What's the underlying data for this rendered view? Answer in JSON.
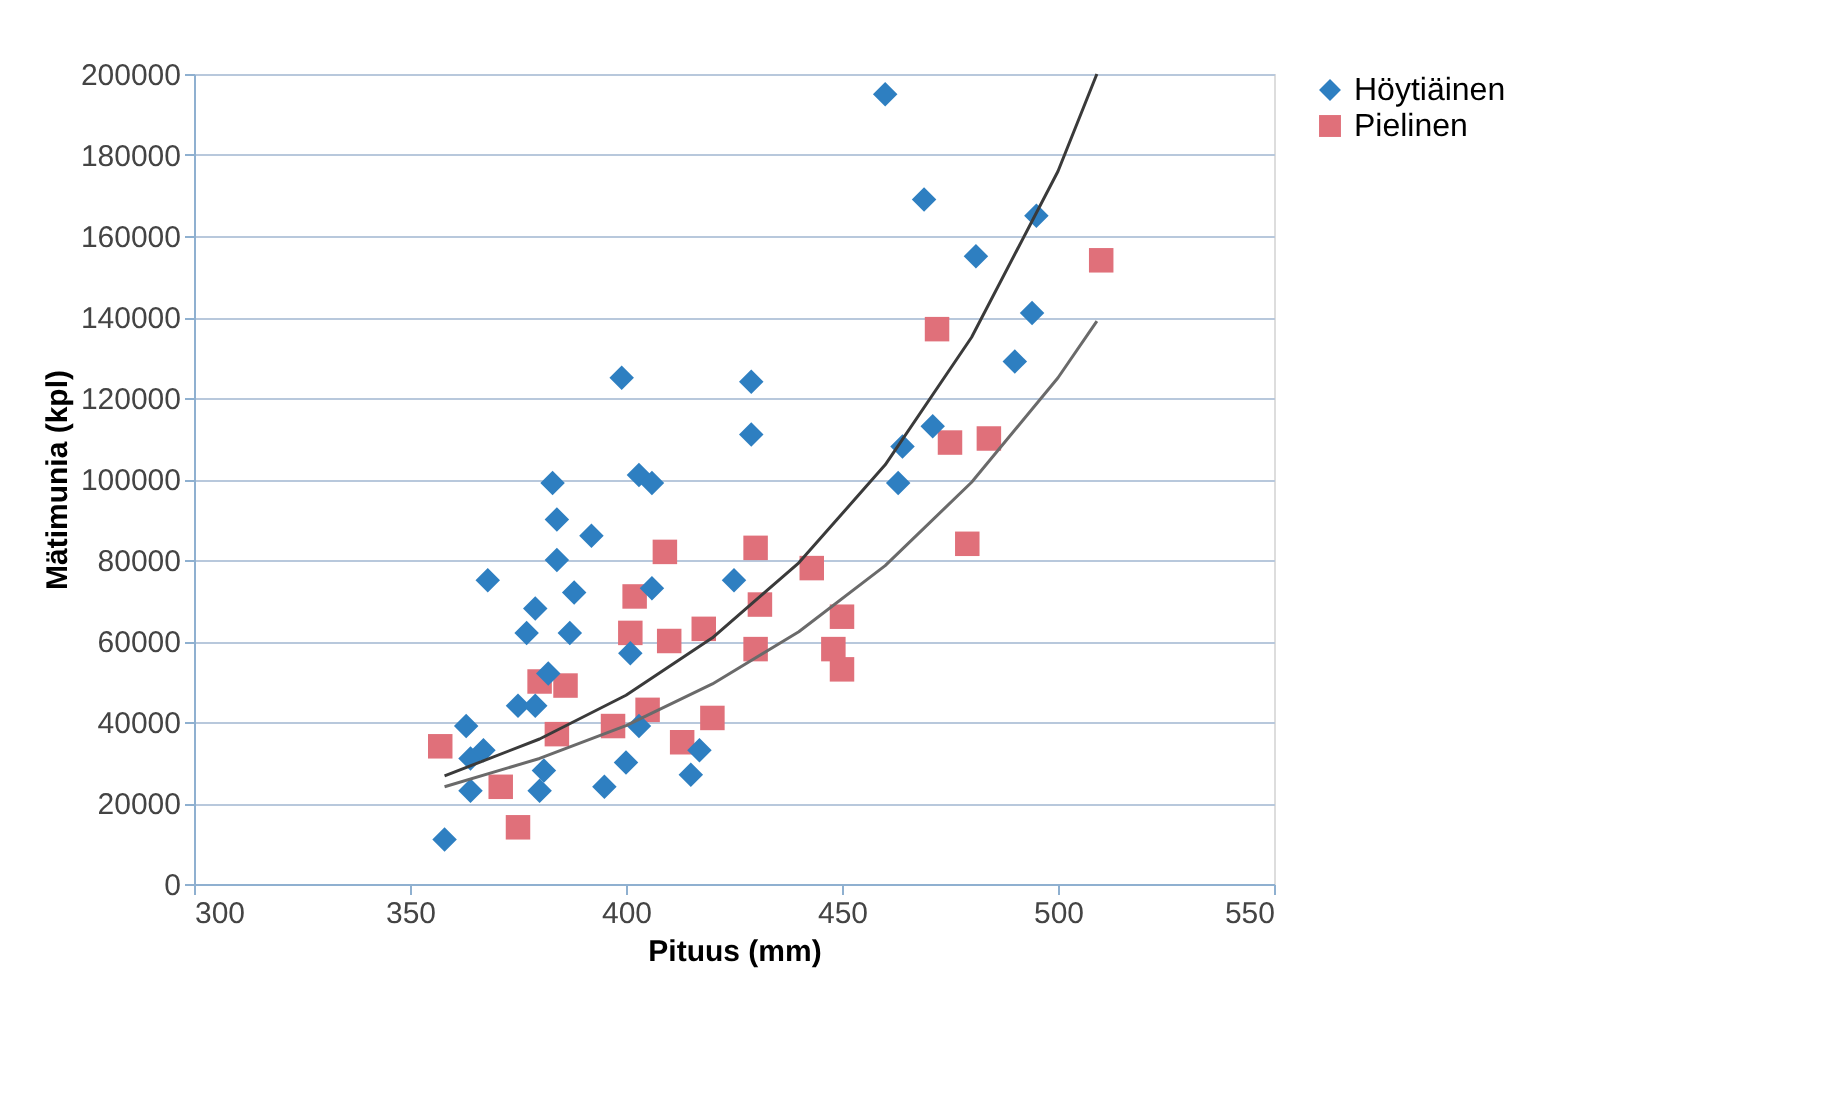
{
  "chart_data": {
    "type": "scatter",
    "xlabel": "Pituus (mm)",
    "ylabel": "Mätimunia (kpl)",
    "xlim": [
      300,
      550
    ],
    "xticks": [
      300,
      350,
      400,
      450,
      500,
      550
    ],
    "ylim": [
      0,
      200000
    ],
    "yticks": [
      0,
      20000,
      40000,
      60000,
      80000,
      100000,
      120000,
      140000,
      160000,
      180000,
      200000
    ],
    "grid": "y",
    "legend": "right",
    "series": [
      {
        "name": "Höytiäinen",
        "marker": "diamond",
        "color": "#2e7fc1",
        "x": [
          460,
          469,
          481,
          495,
          494,
          490,
          471,
          464,
          463,
          429,
          429,
          399,
          403,
          406,
          383,
          384,
          392,
          368,
          384,
          388,
          379,
          377,
          387,
          382,
          406,
          425,
          401,
          375,
          379,
          363,
          364,
          364,
          381,
          380,
          395,
          400,
          415,
          417,
          358,
          367,
          403
        ],
        "values": [
          195000,
          169000,
          155000,
          165000,
          141000,
          129000,
          113000,
          108000,
          99000,
          124000,
          111000,
          125000,
          101000,
          99000,
          99000,
          90000,
          86000,
          75000,
          80000,
          72000,
          68000,
          62000,
          62000,
          52000,
          73000,
          75000,
          57000,
          44000,
          44000,
          39000,
          31000,
          23000,
          28000,
          23000,
          24000,
          30000,
          27000,
          33000,
          11000,
          33000,
          39000
        ]
      },
      {
        "name": "Pielinen",
        "marker": "square",
        "color": "#e0707a",
        "x": [
          409,
          430,
          443,
          479,
          402,
          431,
          450,
          401,
          410,
          418,
          430,
          448,
          450,
          380,
          386,
          384,
          397,
          405,
          420,
          413,
          357,
          371,
          375,
          510,
          472,
          475,
          484
        ],
        "values": [
          82000,
          83000,
          78000,
          84000,
          71000,
          69000,
          66000,
          62000,
          60000,
          63000,
          58000,
          58000,
          53000,
          50000,
          49000,
          37000,
          39000,
          43000,
          41000,
          35000,
          34000,
          24000,
          14000,
          154000,
          137000,
          109000,
          110000
        ]
      },
      {
        "type": "line",
        "color": "#3a3a3a",
        "marker": "none",
        "line_style": "solid",
        "x": [
          358,
          380,
          400,
          420,
          440,
          460,
          480,
          500,
          509
        ],
        "values": [
          26700,
          35800,
          46600,
          60800,
          79300,
          103500,
          135000,
          176000,
          200000
        ]
      },
      {
        "type": "line",
        "color": "#6a6a6a",
        "marker": "none",
        "line_style": "solid",
        "x": [
          358,
          380,
          400,
          420,
          440,
          460,
          480,
          500,
          509
        ],
        "values": [
          24000,
          31000,
          39100,
          49400,
          62300,
          78600,
          99200,
          125000,
          139000
        ]
      }
    ]
  }
}
